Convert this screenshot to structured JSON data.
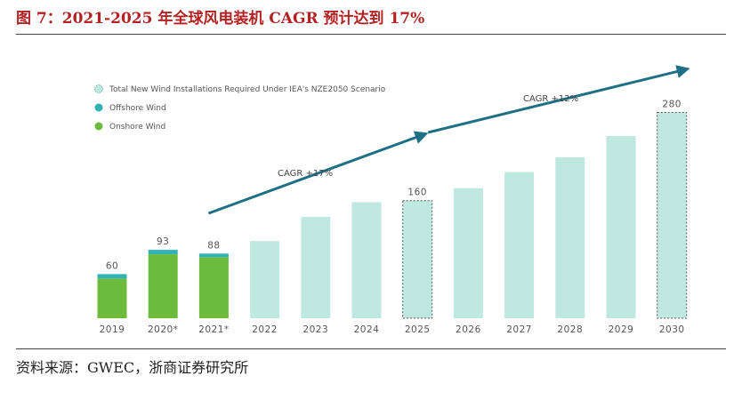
{
  "title": "图 7：2021-2025 年全球风电装机 CAGR 预计达到 17%",
  "source": "资料来源：GWEC，浙商证券研究所",
  "colors": {
    "onshore": "#6cbb3c",
    "offshore": "#2fb3b3",
    "total_iea": "#bfe8e0",
    "arrow": "#1f6f85",
    "title": "#b22222"
  },
  "chart_data": {
    "type": "bar",
    "categories": [
      "2019",
      "2020*",
      "2021*",
      "2022",
      "2023",
      "2024",
      "2025",
      "2026",
      "2027",
      "2028",
      "2029",
      "2030"
    ],
    "series": [
      {
        "name": "Onshore Wind",
        "values": [
          54,
          87,
          83,
          null,
          null,
          null,
          null,
          null,
          null,
          null,
          null,
          null
        ]
      },
      {
        "name": "Offshore Wind",
        "values": [
          6,
          6,
          5,
          null,
          null,
          null,
          null,
          null,
          null,
          null,
          null,
          null
        ]
      },
      {
        "name": "Total New Wind Installations Required Under IEA's NZE2050 Scenario",
        "values": [
          null,
          null,
          null,
          105,
          138,
          158,
          160,
          177,
          199,
          219,
          248,
          280
        ]
      }
    ],
    "data_labels": [
      "60",
      "93",
      "88",
      "",
      "",
      "",
      "160",
      "",
      "",
      "",
      "",
      "280"
    ],
    "dashed_outline_categories": [
      "2025",
      "2030"
    ],
    "ylim": [
      0,
      300
    ],
    "legend": {
      "position": "top-left",
      "entries": [
        "Total New Wind Installations Required Under IEA's NZE2050 Scenario",
        "Offshore Wind",
        "Onshore Wind"
      ]
    },
    "annotations": [
      {
        "text": "CAGR +17%",
        "from": "2021*",
        "to": "2025"
      },
      {
        "text": "CAGR +12%",
        "from": "2025",
        "to": "2030"
      }
    ],
    "grid": false
  }
}
